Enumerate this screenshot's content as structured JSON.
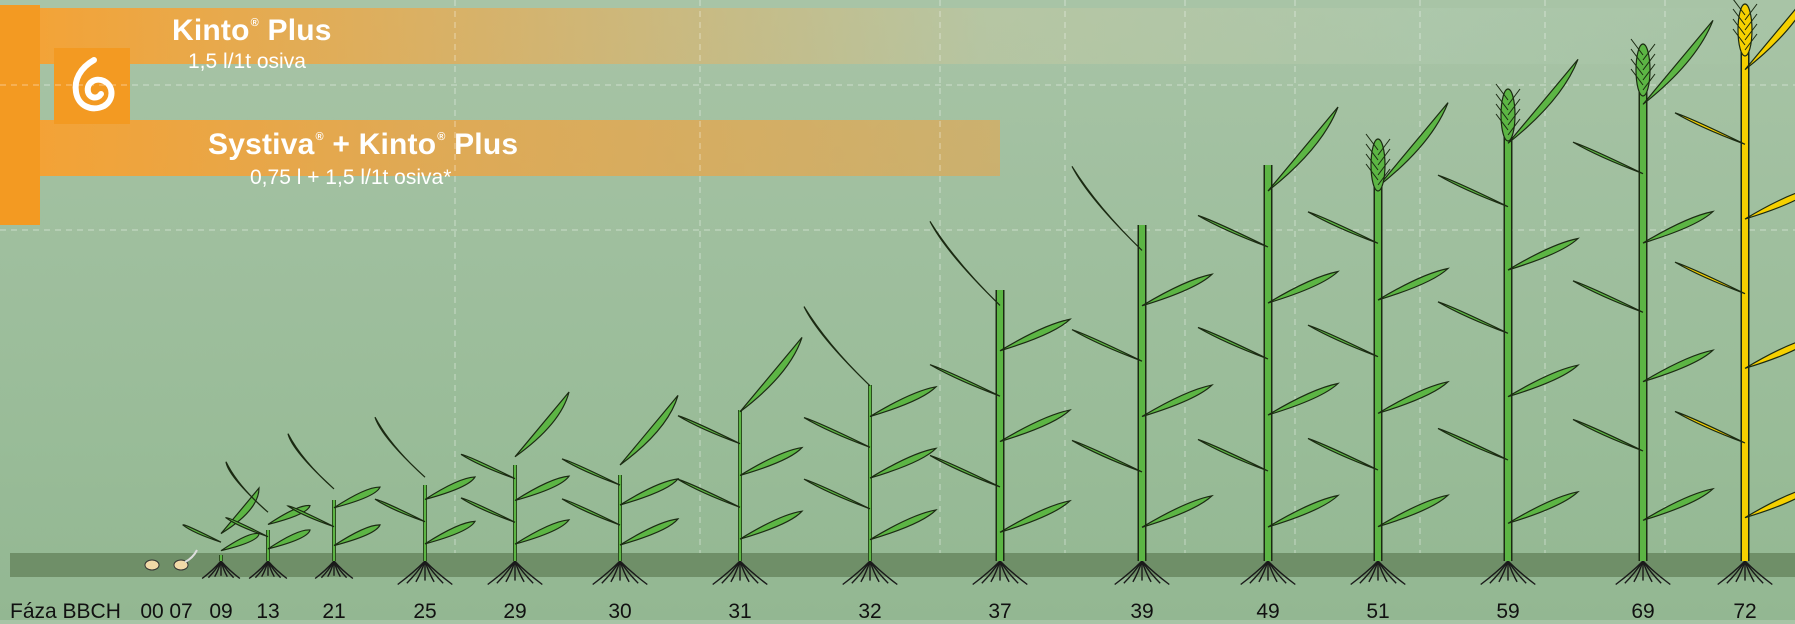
{
  "products": [
    {
      "name": "Kinto",
      "name_suffix": " Plus",
      "dose": "1,5 l/1t osiva"
    },
    {
      "name_a": "Systiva",
      "name_b": " + Kinto",
      "name_c": " Plus",
      "dose": "0,75 l + 1,5 l/1t osiva*"
    }
  ],
  "axis": {
    "label": "Fáza BBCH",
    "stages": [
      "00",
      "07",
      "09",
      "13",
      "21",
      "25",
      "29",
      "30",
      "31",
      "32",
      "37",
      "39",
      "49",
      "51",
      "59",
      "69",
      "72"
    ]
  },
  "colors": {
    "accent_orange": "#f39a22",
    "background_green": "#9dbe9c",
    "plant_green": "#5cb544",
    "ripe_yellow": "#f5d000",
    "soil": "#6f8f68"
  }
}
